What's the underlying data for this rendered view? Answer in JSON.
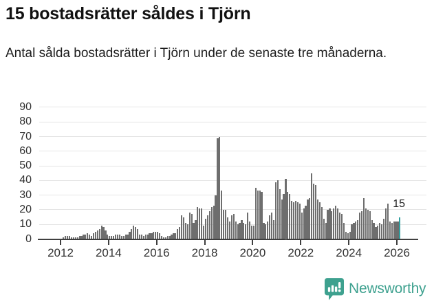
{
  "header": {
    "title": "15 bostadsrätter såldes i Tjörn",
    "subtitle": "Antal sålda bostadsrätter i Tjörn under de senaste tre månaderna."
  },
  "chart_data": {
    "type": "bar",
    "title": "15 bostadsrätter såldes i Tjörn",
    "xlabel": "",
    "ylabel": "",
    "ylim": [
      0,
      90
    ],
    "yticks": [
      0,
      10,
      20,
      30,
      40,
      50,
      60,
      70,
      80,
      90
    ],
    "xticks": [
      2012,
      2014,
      2016,
      2018,
      2020,
      2022,
      2024,
      2026
    ],
    "grid": true,
    "frequency": "monthly",
    "start_month": "2011-07",
    "values": [
      0,
      0,
      0,
      0,
      0,
      0,
      0,
      1,
      2,
      2,
      2,
      1,
      1,
      1,
      1,
      2,
      2,
      3,
      3,
      4,
      3,
      2,
      4,
      5,
      6,
      7,
      9,
      8,
      6,
      3,
      2,
      2,
      2,
      3,
      3,
      3,
      2,
      2,
      3,
      3,
      5,
      7,
      9,
      8,
      7,
      3,
      3,
      2,
      3,
      3,
      4,
      4,
      5,
      5,
      5,
      4,
      2,
      1,
      1,
      2,
      2,
      3,
      4,
      4,
      7,
      8,
      16,
      15,
      11,
      10,
      18,
      17,
      11,
      13,
      22,
      21,
      21,
      9,
      14,
      16,
      19,
      22,
      23,
      30,
      69,
      70,
      33,
      20,
      20,
      15,
      12,
      16,
      17,
      12,
      10,
      11,
      13,
      11,
      10,
      18,
      12,
      9,
      9,
      35,
      33,
      33,
      32,
      11,
      10,
      12,
      16,
      18,
      13,
      39,
      40,
      34,
      27,
      31,
      41,
      32,
      31,
      26,
      25,
      26,
      25,
      24,
      18,
      21,
      23,
      27,
      28,
      45,
      38,
      37,
      27,
      25,
      22,
      14,
      11,
      20,
      21,
      19,
      21,
      23,
      21,
      18,
      17,
      11,
      5,
      4,
      5,
      10,
      11,
      12,
      13,
      18,
      19,
      28,
      21,
      20,
      19,
      13,
      11,
      8,
      9,
      11,
      10,
      14,
      21,
      24,
      12,
      11,
      12,
      12,
      12,
      15
    ],
    "bar_color": "#6e6e6e",
    "highlight_color": "#2f9f9f",
    "annotation": {
      "text": "15",
      "value": 15
    }
  },
  "footer": {
    "brand": "Newsworthy",
    "brand_color": "#3ea18f"
  }
}
